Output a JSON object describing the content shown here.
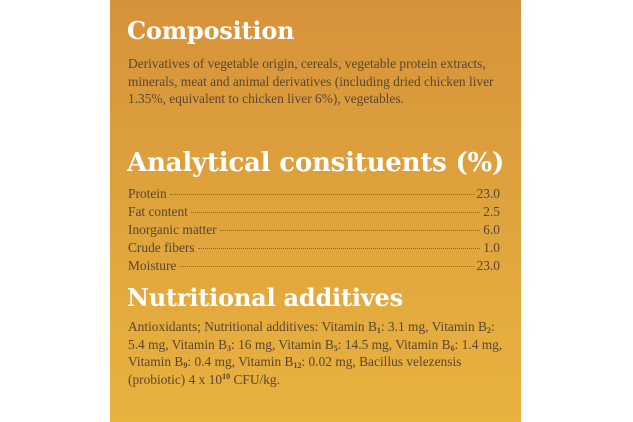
{
  "colors": {
    "panel_top": "#d6923a",
    "panel_bottom": "#e9b23f",
    "heading": "#ffffff",
    "body_text": "#5a4630"
  },
  "composition": {
    "title": "Composition",
    "text": "Derivatives of vegetable origin, cereals, vegetable protein extracts, minerals, meat and animal derivatives (including dried chicken liver 1.35%, equivalent to chicken liver 6%), vegetables."
  },
  "analytical": {
    "title": "Analytical consituents (%)",
    "rows": [
      {
        "label": "Protein",
        "value": "23.0"
      },
      {
        "label": "Fat content",
        "value": "2.5"
      },
      {
        "label": "Inorganic matter",
        "value": "6.0"
      },
      {
        "label": "Crude fibers",
        "value": "1.0"
      },
      {
        "label": "Moisture",
        "value": "23.0"
      }
    ]
  },
  "nutritional": {
    "title": "Nutritional additives",
    "intro": "Antioxidants; Nutritional additives: ",
    "vitamins": [
      {
        "name": "Vitamin B",
        "sub": "1",
        "amount": ": 3.1 mg, "
      },
      {
        "name": "Vitamin B",
        "sub": "2",
        "amount": ": 5.4 mg, "
      },
      {
        "name": "Vitamin B",
        "sub": "3",
        "amount": ": 16 mg, "
      },
      {
        "name": "Vitamin B",
        "sub": "5",
        "amount": ": 14.5 mg, "
      },
      {
        "name": "Vitamin B",
        "sub": "6",
        "amount": ": 1.4 mg, "
      },
      {
        "name": "Vitamin B",
        "sub": "9",
        "amount": ": 0.4 mg, "
      },
      {
        "name": "Vitamin B",
        "sub": "12",
        "amount": ": 0.02 mg, "
      }
    ],
    "probiotic": "Bacillus velezensis (probiotic) ",
    "cfu_base": "4 x 10",
    "cfu_exp": "10",
    "cfu_unit": " CFU/kg."
  }
}
